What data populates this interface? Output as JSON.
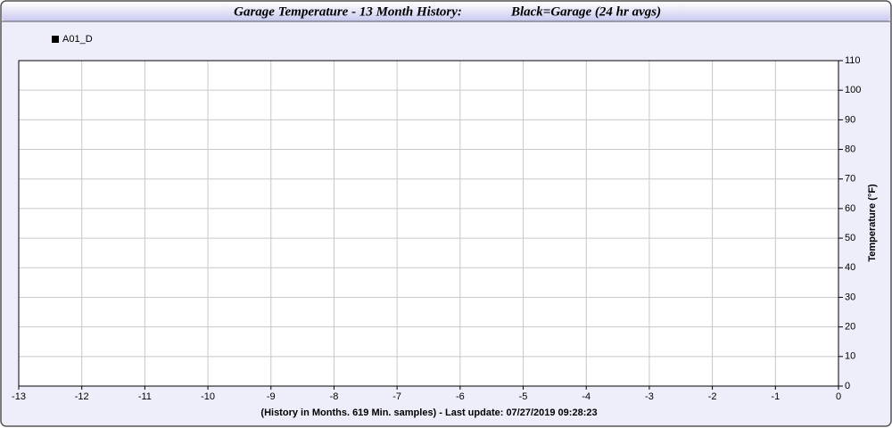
{
  "chart_data": {
    "type": "line",
    "title": "Garage Temperature - 13 Month History:",
    "subtitle": "Black=Garage (24 hr avgs)",
    "x_label": "(History in Months. 619 Min. samples) - Last update: 07/27/2019 09:28:23",
    "y_label": "Temperature (°F)",
    "x": [],
    "series": [
      {
        "name": "A01_D",
        "color": "#000000",
        "values": []
      }
    ],
    "xlim": [
      -13,
      0
    ],
    "xticks": [
      -13,
      -12,
      -11,
      -10,
      -9,
      -8,
      -7,
      -6,
      -5,
      -4,
      -3,
      -2,
      -1,
      0
    ],
    "ylim": [
      0,
      110
    ],
    "yticks": [
      0,
      10,
      20,
      30,
      40,
      50,
      60,
      70,
      80,
      90,
      100,
      110
    ],
    "grid": true
  }
}
